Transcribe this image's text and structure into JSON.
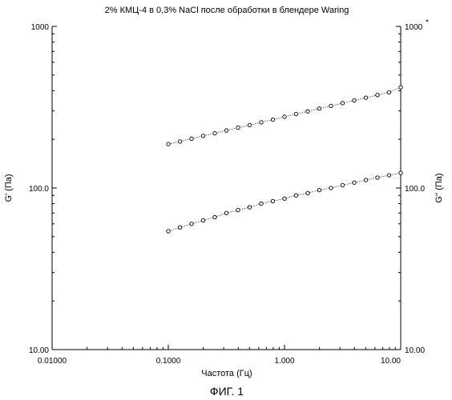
{
  "chart_data": {
    "type": "scatter",
    "title": "2% КМЦ-4 в 0,3% NaCl после обработки в блендере Waring",
    "xlabel": "Частота (Гц)",
    "ylabel_left": "G' (Па)",
    "ylabel_right": "G'' (Па)",
    "caption": "ФИГ. 1",
    "x_scale": "log",
    "y_scale": "log",
    "xlim": [
      0.01,
      10
    ],
    "ylim": [
      10,
      1000
    ],
    "x_tick_labels": [
      "0.01000",
      "0.1000",
      "1.000",
      "10.00"
    ],
    "y_left_tick_labels": [
      "10.00",
      "100.0",
      "1000"
    ],
    "y_right_tick_labels": [
      "10.00",
      "100.0",
      "1000"
    ],
    "y_right_top_mark": "*",
    "grid": false,
    "series": [
      {
        "x": [
          0.1,
          0.1259,
          0.1585,
          0.1995,
          0.2512,
          0.3162,
          0.3981,
          0.5012,
          0.631,
          0.7943,
          1.0,
          1.259,
          1.585,
          1.995,
          2.512,
          3.162,
          3.981,
          5.012,
          6.31,
          7.943,
          10.0
        ],
        "y": [
          187,
          194,
          202,
          210,
          218,
          227,
          236,
          245,
          255,
          265,
          276,
          287,
          298,
          310,
          322,
          335,
          348,
          362,
          376,
          391,
          420
        ],
        "marker": "circle",
        "line": "dotted"
      },
      {
        "x": [
          0.1,
          0.1259,
          0.1585,
          0.1995,
          0.2512,
          0.3162,
          0.3981,
          0.5012,
          0.631,
          0.7943,
          1.0,
          1.259,
          1.585,
          1.995,
          2.512,
          3.162,
          3.981,
          5.012,
          6.31,
          7.943,
          10.0
        ],
        "y": [
          54,
          57,
          60,
          63,
          66,
          70,
          73,
          76,
          80,
          83,
          86,
          90,
          93,
          97,
          100,
          104,
          108,
          112,
          116,
          120,
          124
        ],
        "marker": "circle",
        "line": "dotted"
      }
    ]
  }
}
